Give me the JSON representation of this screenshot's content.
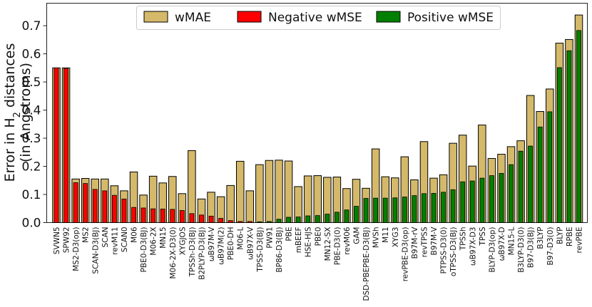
{
  "chart_data": {
    "type": "bar",
    "ylabel_line1": "Error in H",
    "ylabel_sub": "2",
    "ylabel_line1_rest": " distances",
    "ylabel_line2": "(in Angstroms)",
    "ylim": [
      0,
      0.78
    ],
    "yticks": [
      0.0,
      0.1,
      0.2,
      0.3,
      0.4,
      0.5,
      0.6,
      0.7
    ],
    "ytick_labels": [
      "0.0",
      "0.1",
      "0.2",
      "0.3",
      "0.4",
      "0.5",
      "0.6",
      "0.7"
    ],
    "legend": {
      "position": "top-center",
      "entries": [
        {
          "key": "wmae",
          "label": "wMAE",
          "color": "#d4b96a"
        },
        {
          "key": "neg",
          "label": "Negative wMSE",
          "color": "#ff0000"
        },
        {
          "key": "pos",
          "label": "Positive wMSE",
          "color": "#008000"
        }
      ]
    },
    "categories": [
      "SVWN5",
      "SPW92",
      "MS2-D3(op)",
      "MS2",
      "SCAN-D3(BJ)",
      "SCAN",
      "revM11",
      "SCAN0",
      "M06",
      "PBE0-D3(BJ)",
      "M06-2X",
      "MN15",
      "M06-2X-D3(0)",
      "XYGJOS",
      "TPSSh-D3(BJ)",
      "B2PLYP-D3(BJ)",
      "ωB97M-V",
      "ωB97M(2)",
      "PBE0-DH",
      "M06-L",
      "ωB97X-V",
      "TPSS-D3(BJ)",
      "PW91",
      "BP86-D3(BJ)",
      "PBE",
      "mBEEF",
      "HSE-HJS",
      "PBE0",
      "MN12-SX",
      "PBE-D3(0)",
      "revM06",
      "GAM",
      "DSD-PBEPBE-D3(BJ)",
      "MVSh",
      "M11",
      "XYG3",
      "revPBE-D3(op)",
      "B97M-rV",
      "revTPSS",
      "B97M-V",
      "PTPSS-D3(0)",
      "oTPSS-D3(BJ)",
      "TPSSh",
      "ωB97X-D3",
      "TPSS",
      "BLYP-D3(op)",
      "ωB97X-D",
      "MN15-L",
      "B3LYP-D3(0)",
      "B97-D3(BJ)",
      "B3LYP",
      "B97-D3(0)",
      "BLYP",
      "RPBE",
      "revPBE"
    ],
    "series": [
      {
        "name": "wMAE",
        "values": [
          0.55,
          0.55,
          0.155,
          0.157,
          0.155,
          0.155,
          0.131,
          0.113,
          0.18,
          0.098,
          0.165,
          0.141,
          0.164,
          0.103,
          0.256,
          0.084,
          0.108,
          0.092,
          0.132,
          0.218,
          0.113,
          0.206,
          0.221,
          0.222,
          0.219,
          0.128,
          0.166,
          0.167,
          0.161,
          0.162,
          0.121,
          0.154,
          0.122,
          0.262,
          0.163,
          0.159,
          0.234,
          0.152,
          0.288,
          0.158,
          0.17,
          0.282,
          0.311,
          0.201,
          0.347,
          0.228,
          0.243,
          0.27,
          0.291,
          0.452,
          0.395,
          0.475,
          0.638,
          0.651,
          0.738
        ]
      },
      {
        "name": "Negative wMSE",
        "values": [
          0.55,
          0.548,
          0.142,
          0.139,
          0.118,
          0.113,
          0.097,
          0.084,
          0.054,
          0.052,
          0.049,
          0.048,
          0.047,
          0.043,
          0.032,
          0.027,
          0.023,
          0.015,
          0.007,
          0.004,
          0.004,
          0.002,
          0.002,
          0.0,
          0.0,
          0.0,
          0.0,
          0.0,
          0.0,
          0.0,
          0.0,
          0.0,
          0.0,
          0.0,
          0.0,
          0.0,
          0.0,
          0.0,
          0.0,
          0.0,
          0.0,
          0.0,
          0.0,
          0.0,
          0.0,
          0.0,
          0.0,
          0.0,
          0.0,
          0.0,
          0.0,
          0.0,
          0.0,
          0.0,
          0.0
        ]
      },
      {
        "name": "Positive wMSE",
        "values": [
          0,
          0,
          0,
          0,
          0,
          0,
          0,
          0,
          0,
          0,
          0,
          0,
          0,
          0,
          0,
          0,
          0,
          0,
          0,
          0,
          0,
          0.003,
          0.004,
          0.012,
          0.019,
          0.02,
          0.024,
          0.025,
          0.03,
          0.037,
          0.045,
          0.058,
          0.086,
          0.087,
          0.087,
          0.088,
          0.091,
          0.096,
          0.103,
          0.104,
          0.108,
          0.117,
          0.145,
          0.148,
          0.158,
          0.167,
          0.175,
          0.206,
          0.254,
          0.272,
          0.34,
          0.394,
          0.551,
          0.611,
          0.683
        ]
      }
    ]
  }
}
